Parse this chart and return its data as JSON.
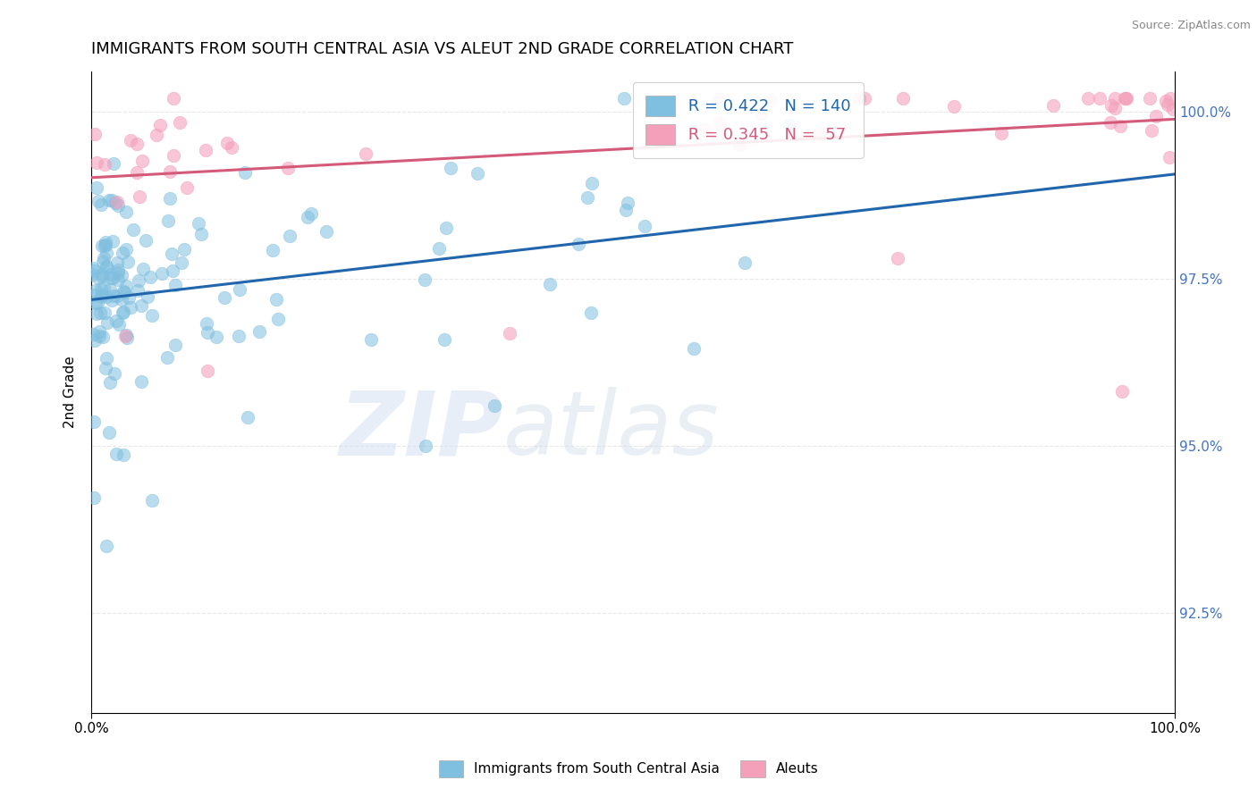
{
  "title": "IMMIGRANTS FROM SOUTH CENTRAL ASIA VS ALEUT 2ND GRADE CORRELATION CHART",
  "source": "Source: ZipAtlas.com",
  "ylabel": "2nd Grade",
  "x_tick_labels": [
    "0.0%",
    "100.0%"
  ],
  "y_tick_labels": [
    "92.5%",
    "95.0%",
    "97.5%",
    "100.0%"
  ],
  "y_tick_positions": [
    0.925,
    0.95,
    0.975,
    1.0
  ],
  "xlim": [
    0.0,
    1.0
  ],
  "ylim": [
    0.91,
    1.006
  ],
  "legend_r_blue": "R = 0.422",
  "legend_n_blue": "N = 140",
  "legend_r_pink": "R = 0.345",
  "legend_n_pink": "N =  57",
  "legend_label_blue": "Immigrants from South Central Asia",
  "legend_label_pink": "Aleuts",
  "blue_color": "#7fbfdf",
  "pink_color": "#f4a0bb",
  "blue_line_color": "#2166ac",
  "pink_line_color": "#d45a7a",
  "title_fontsize": 13,
  "watermark_zip": "ZIP",
  "watermark_atlas": "atlas",
  "blue_line_intercept": 0.974,
  "blue_line_slope": 0.028,
  "pink_line_intercept": 0.994,
  "pink_line_slope": 0.008
}
